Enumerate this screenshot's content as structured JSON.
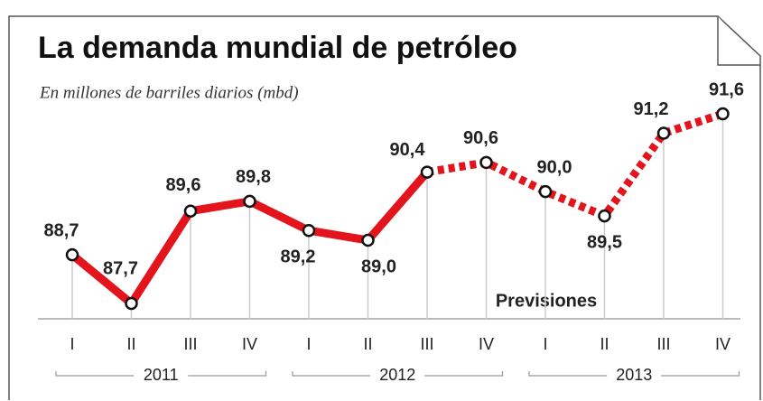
{
  "chart_data": {
    "type": "line",
    "title": "La demanda mundial de petróleo",
    "subtitle": "En millones de barriles diarios (mbd)",
    "annotation": "Previsiones",
    "categories": [
      "I",
      "II",
      "III",
      "IV",
      "I",
      "II",
      "III",
      "IV",
      "I",
      "II",
      "III",
      "IV"
    ],
    "groups": [
      "2011",
      "2012",
      "2013"
    ],
    "values": [
      88.7,
      87.7,
      89.6,
      89.8,
      89.2,
      89.0,
      90.4,
      90.6,
      90.0,
      89.5,
      91.2,
      91.6
    ],
    "value_labels": [
      "88,7",
      "87,7",
      "89,6",
      "89,8",
      "89,2",
      "89,0",
      "90,4",
      "90,6",
      "90,0",
      "89,5",
      "91,2",
      "91,6"
    ],
    "color": "#e3141b",
    "forecast_from": 6
  }
}
